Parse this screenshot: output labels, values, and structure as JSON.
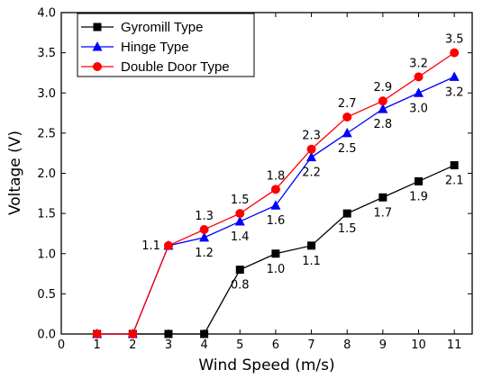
{
  "chart_data": {
    "type": "line",
    "title": "",
    "xlabel": "Wind Speed (m/s)",
    "ylabel": "Voltage (V)",
    "xlim": [
      0,
      11.5
    ],
    "ylim": [
      0,
      4.0
    ],
    "xticks": [
      0,
      1,
      2,
      3,
      4,
      5,
      6,
      7,
      8,
      9,
      10,
      11
    ],
    "yticks": [
      0.0,
      0.5,
      1.0,
      1.5,
      2.0,
      2.5,
      3.0,
      3.5,
      4.0
    ],
    "ytick_labels": [
      "0.0",
      "0.5",
      "1.0",
      "1.5",
      "2.0",
      "2.5",
      "3.0",
      "3.5",
      "4.0"
    ],
    "grid": false,
    "legend_position": "top-left",
    "series": [
      {
        "name": "Gyromill Type",
        "color": "#000000",
        "marker": "square",
        "x": [
          1,
          2,
          3,
          4,
          5,
          6,
          7,
          8,
          9,
          10,
          11
        ],
        "y": [
          0,
          0,
          0,
          0,
          0.8,
          1.0,
          1.1,
          1.5,
          1.7,
          1.9,
          2.1
        ],
        "labels": [
          {
            "x": 5,
            "text": "0.8"
          },
          {
            "x": 6,
            "text": "1.0"
          },
          {
            "x": 7,
            "text": "1.1"
          },
          {
            "x": 8,
            "text": "1.5"
          },
          {
            "x": 9,
            "text": "1.7"
          },
          {
            "x": 10,
            "text": "1.9"
          },
          {
            "x": 11,
            "text": "2.1"
          }
        ]
      },
      {
        "name": "Hinge Type",
        "color": "#0000ff",
        "marker": "triangle",
        "x": [
          1,
          2,
          3,
          4,
          5,
          6,
          7,
          8,
          9,
          10,
          11
        ],
        "y": [
          0,
          0,
          1.1,
          1.2,
          1.4,
          1.6,
          2.2,
          2.5,
          2.8,
          3.0,
          3.2
        ],
        "labels": [
          {
            "x": 4,
            "text": "1.2"
          },
          {
            "x": 5,
            "text": "1.4"
          },
          {
            "x": 6,
            "text": "1.6"
          },
          {
            "x": 7,
            "text": "2.2"
          },
          {
            "x": 8,
            "text": "2.5"
          },
          {
            "x": 9,
            "text": "2.8"
          },
          {
            "x": 10,
            "text": "3.0"
          },
          {
            "x": 11,
            "text": "3.2"
          }
        ]
      },
      {
        "name": "Double Door Type",
        "color": "#ff0000",
        "marker": "circle",
        "x": [
          1,
          2,
          3,
          4,
          5,
          6,
          7,
          8,
          9,
          10,
          11
        ],
        "y": [
          0,
          0,
          1.1,
          1.3,
          1.5,
          1.8,
          2.3,
          2.7,
          2.9,
          3.2,
          3.5
        ],
        "labels": [
          {
            "x": 3,
            "text": "1.1"
          },
          {
            "x": 4,
            "text": "1.3"
          },
          {
            "x": 5,
            "text": "1.5"
          },
          {
            "x": 6,
            "text": "1.8"
          },
          {
            "x": 7,
            "text": "2.3"
          },
          {
            "x": 8,
            "text": "2.7"
          },
          {
            "x": 9,
            "text": "2.9"
          },
          {
            "x": 10,
            "text": "3.2"
          },
          {
            "x": 11,
            "text": "3.5"
          }
        ]
      }
    ]
  }
}
